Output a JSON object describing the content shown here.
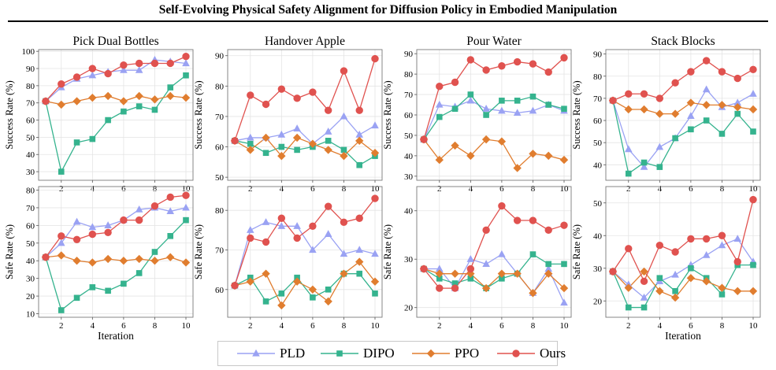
{
  "page": {
    "title": "Self-Evolving Physical Safety Alignment for Diffusion Policy in Embodied Manipulation"
  },
  "legend": [
    {
      "name": "PLD",
      "color": "#9aa2f3",
      "marker": "triangle"
    },
    {
      "name": "DIPO",
      "color": "#35b38e",
      "marker": "square"
    },
    {
      "name": "PPO",
      "color": "#e07d2f",
      "marker": "diamond"
    },
    {
      "name": "Ours",
      "color": "#e0524f",
      "marker": "circle"
    }
  ],
  "chart_data": [
    {
      "type": "line",
      "title": "Pick Dual Bottles",
      "ylabel": "Success Rate (%)",
      "xlabel": "",
      "x": [
        1,
        2,
        3,
        4,
        5,
        6,
        7,
        8,
        9,
        10
      ],
      "xticks": [
        2,
        4,
        6,
        8,
        10
      ],
      "ylim": [
        25,
        101
      ],
      "yticks": [
        30,
        40,
        50,
        60,
        70,
        80,
        90,
        100
      ],
      "grid": true,
      "series": [
        {
          "name": "PLD",
          "values": [
            71,
            79,
            84,
            86,
            88,
            89,
            89,
            95,
            94,
            93
          ]
        },
        {
          "name": "DIPO",
          "values": [
            71,
            30,
            47,
            49,
            60,
            65,
            68,
            66,
            79,
            86
          ]
        },
        {
          "name": "PPO",
          "values": [
            71,
            69,
            71,
            73,
            74,
            71,
            74,
            72,
            74,
            73
          ]
        },
        {
          "name": "Ours",
          "values": [
            71,
            81,
            85,
            90,
            87,
            92,
            93,
            93,
            93,
            97
          ]
        }
      ]
    },
    {
      "type": "line",
      "title": "Handover Apple",
      "ylabel": "Success Rate (%)",
      "xlabel": "",
      "x": [
        1,
        2,
        3,
        4,
        5,
        6,
        7,
        8,
        9,
        10
      ],
      "xticks": [
        2,
        4,
        6,
        8,
        10
      ],
      "ylim": [
        49,
        92
      ],
      "yticks": [
        50,
        60,
        70,
        80,
        90
      ],
      "grid": true,
      "series": [
        {
          "name": "PLD",
          "values": [
            62,
            63,
            63,
            64,
            66,
            61,
            65,
            70,
            64,
            67
          ]
        },
        {
          "name": "DIPO",
          "values": [
            62,
            61,
            58,
            60,
            59,
            60,
            62,
            59,
            54,
            57
          ]
        },
        {
          "name": "PPO",
          "values": [
            62,
            59,
            63,
            57,
            63,
            61,
            59,
            57,
            62,
            58
          ]
        },
        {
          "name": "Ours",
          "values": [
            62,
            77,
            74,
            79,
            76,
            78,
            72,
            85,
            72,
            89
          ]
        }
      ]
    },
    {
      "type": "line",
      "title": "Pour Water",
      "ylabel": "Success Rate (%)",
      "xlabel": "",
      "x": [
        1,
        2,
        3,
        4,
        5,
        6,
        7,
        8,
        9,
        10
      ],
      "xticks": [
        2,
        4,
        6,
        8,
        10
      ],
      "ylim": [
        28,
        92
      ],
      "yticks": [
        30,
        40,
        50,
        60,
        70,
        80,
        90
      ],
      "grid": true,
      "series": [
        {
          "name": "PLD",
          "values": [
            48,
            65,
            64,
            67,
            63,
            62,
            61,
            62,
            65,
            62
          ]
        },
        {
          "name": "DIPO",
          "values": [
            48,
            59,
            63,
            70,
            60,
            67,
            67,
            69,
            65,
            63
          ]
        },
        {
          "name": "PPO",
          "values": [
            48,
            38,
            45,
            40,
            48,
            47,
            34,
            41,
            40,
            38
          ]
        },
        {
          "name": "Ours",
          "values": [
            48,
            74,
            76,
            87,
            82,
            84,
            86,
            85,
            81,
            88
          ]
        }
      ]
    },
    {
      "type": "line",
      "title": "Stack Blocks",
      "ylabel": "Success Rate (%)",
      "xlabel": "",
      "x": [
        1,
        2,
        3,
        4,
        5,
        6,
        7,
        8,
        9,
        10
      ],
      "xticks": [
        2,
        4,
        6,
        8,
        10
      ],
      "ylim": [
        33,
        92
      ],
      "yticks": [
        40,
        50,
        60,
        70,
        80,
        90
      ],
      "grid": true,
      "series": [
        {
          "name": "PLD",
          "values": [
            69,
            47,
            39,
            48,
            52,
            62,
            74,
            66,
            68,
            72
          ]
        },
        {
          "name": "DIPO",
          "values": [
            69,
            36,
            41,
            39,
            52,
            56,
            60,
            54,
            63,
            55
          ]
        },
        {
          "name": "PPO",
          "values": [
            69,
            65,
            65,
            63,
            63,
            68,
            67,
            67,
            66,
            65
          ]
        },
        {
          "name": "Ours",
          "values": [
            69,
            72,
            72,
            70,
            77,
            82,
            87,
            82,
            79,
            83
          ]
        }
      ]
    },
    {
      "type": "line",
      "title": "",
      "ylabel": "Safe Rate (%)",
      "xlabel": "Iteration",
      "x": [
        1,
        2,
        3,
        4,
        5,
        6,
        7,
        8,
        9,
        10
      ],
      "xticks": [
        2,
        4,
        6,
        8,
        10
      ],
      "ylim": [
        8,
        82
      ],
      "yticks": [
        10,
        20,
        30,
        40,
        50,
        60,
        70,
        80
      ],
      "grid": true,
      "series": [
        {
          "name": "PLD",
          "values": [
            42,
            50,
            62,
            59,
            60,
            63,
            69,
            70,
            68,
            70
          ]
        },
        {
          "name": "DIPO",
          "values": [
            42,
            12,
            19,
            25,
            23,
            27,
            33,
            45,
            54,
            63
          ]
        },
        {
          "name": "PPO",
          "values": [
            42,
            43,
            40,
            39,
            41,
            40,
            41,
            40,
            42,
            39
          ]
        },
        {
          "name": "Ours",
          "values": [
            42,
            54,
            52,
            55,
            56,
            63,
            63,
            71,
            76,
            77
          ]
        }
      ]
    },
    {
      "type": "line",
      "title": "",
      "ylabel": "Safe Rate (%)",
      "xlabel": "",
      "x": [
        1,
        2,
        3,
        4,
        5,
        6,
        7,
        8,
        9,
        10
      ],
      "xticks": [
        2,
        4,
        6,
        8,
        10
      ],
      "ylim": [
        53,
        86
      ],
      "yticks": [
        60,
        70,
        80
      ],
      "grid": true,
      "series": [
        {
          "name": "PLD",
          "values": [
            61,
            75,
            77,
            76,
            76,
            70,
            74,
            69,
            70,
            69
          ]
        },
        {
          "name": "DIPO",
          "values": [
            61,
            63,
            57,
            59,
            63,
            58,
            60,
            64,
            64,
            59
          ]
        },
        {
          "name": "PPO",
          "values": [
            61,
            62,
            64,
            56,
            62,
            60,
            57,
            64,
            67,
            62
          ]
        },
        {
          "name": "Ours",
          "values": [
            61,
            73,
            72,
            78,
            73,
            76,
            81,
            77,
            78,
            83
          ]
        }
      ]
    },
    {
      "type": "line",
      "title": "",
      "ylabel": "Safe Rate (%)",
      "xlabel": "",
      "x": [
        1,
        2,
        3,
        4,
        5,
        6,
        7,
        8,
        9,
        10
      ],
      "xticks": [
        2,
        4,
        6,
        8,
        10
      ],
      "ylim": [
        18,
        45
      ],
      "yticks": [
        20,
        30,
        40
      ],
      "grid": true,
      "series": [
        {
          "name": "PLD",
          "values": [
            28,
            28,
            24,
            30,
            29,
            31,
            27,
            23,
            28,
            21
          ]
        },
        {
          "name": "DIPO",
          "values": [
            28,
            26,
            25,
            26,
            24,
            26,
            27,
            31,
            29,
            29
          ]
        },
        {
          "name": "PPO",
          "values": [
            28,
            27,
            27,
            27,
            24,
            27,
            27,
            23,
            27,
            24
          ]
        },
        {
          "name": "Ours",
          "values": [
            28,
            24,
            24,
            28,
            36,
            41,
            38,
            38,
            36,
            37
          ]
        }
      ]
    },
    {
      "type": "line",
      "title": "",
      "ylabel": "Safe Rate (%)",
      "xlabel": "Iteration",
      "x": [
        1,
        2,
        3,
        4,
        5,
        6,
        7,
        8,
        9,
        10
      ],
      "xticks": [
        2,
        4,
        6,
        8,
        10
      ],
      "ylim": [
        15,
        55
      ],
      "yticks": [
        20,
        30,
        40,
        50
      ],
      "grid": true,
      "series": [
        {
          "name": "PLD",
          "values": [
            29,
            25,
            21,
            26,
            28,
            31,
            34,
            37,
            39,
            32
          ]
        },
        {
          "name": "DIPO",
          "values": [
            29,
            18,
            18,
            27,
            23,
            30,
            27,
            22,
            31,
            31
          ]
        },
        {
          "name": "PPO",
          "values": [
            29,
            24,
            29,
            23,
            21,
            27,
            26,
            24,
            23,
            23
          ]
        },
        {
          "name": "Ours",
          "values": [
            29,
            36,
            26,
            37,
            35,
            39,
            39,
            40,
            32,
            51
          ]
        }
      ]
    }
  ]
}
